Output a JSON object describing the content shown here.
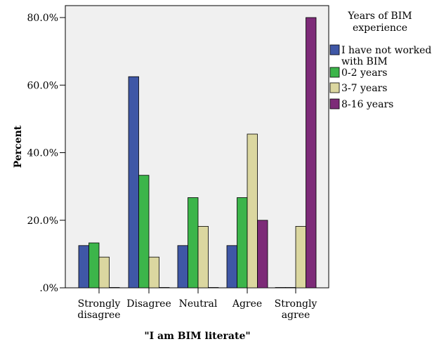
{
  "chart_data": {
    "type": "bar",
    "xlabel": "\"I am BIM literate\"",
    "ylabel": "Percent",
    "ylim": [
      0,
      80
    ],
    "y_ticks": [
      0,
      20,
      40,
      60,
      80
    ],
    "y_tick_labels": [
      ".0%",
      "20.0%",
      "40.0%",
      "60.0%",
      "80.0%"
    ],
    "categories": [
      [
        "Strongly",
        "disagree"
      ],
      [
        "Disagree"
      ],
      [
        "Neutral"
      ],
      [
        "Agree"
      ],
      [
        "Strongly",
        "agree"
      ]
    ],
    "legend": {
      "title": [
        "Years of BIM",
        "experience"
      ],
      "placement": "right"
    },
    "series": [
      {
        "name": [
          "I have not worked",
          "with BIM"
        ],
        "color": "#3f57a6",
        "values": [
          12.5,
          62.5,
          12.5,
          12.5,
          0
        ]
      },
      {
        "name": [
          "0-2 years"
        ],
        "color": "#3cb54a",
        "values": [
          13.3,
          33.3,
          26.7,
          26.7,
          0
        ]
      },
      {
        "name": [
          "3-7 years"
        ],
        "color": "#dbd7a0",
        "values": [
          9.1,
          9.1,
          18.2,
          45.5,
          18.2
        ]
      },
      {
        "name": [
          "8-16 years"
        ],
        "color": "#7d2b78",
        "values": [
          0,
          0,
          0,
          20,
          80
        ]
      }
    ],
    "grid": false,
    "plot_background": "#f0f0f0"
  }
}
